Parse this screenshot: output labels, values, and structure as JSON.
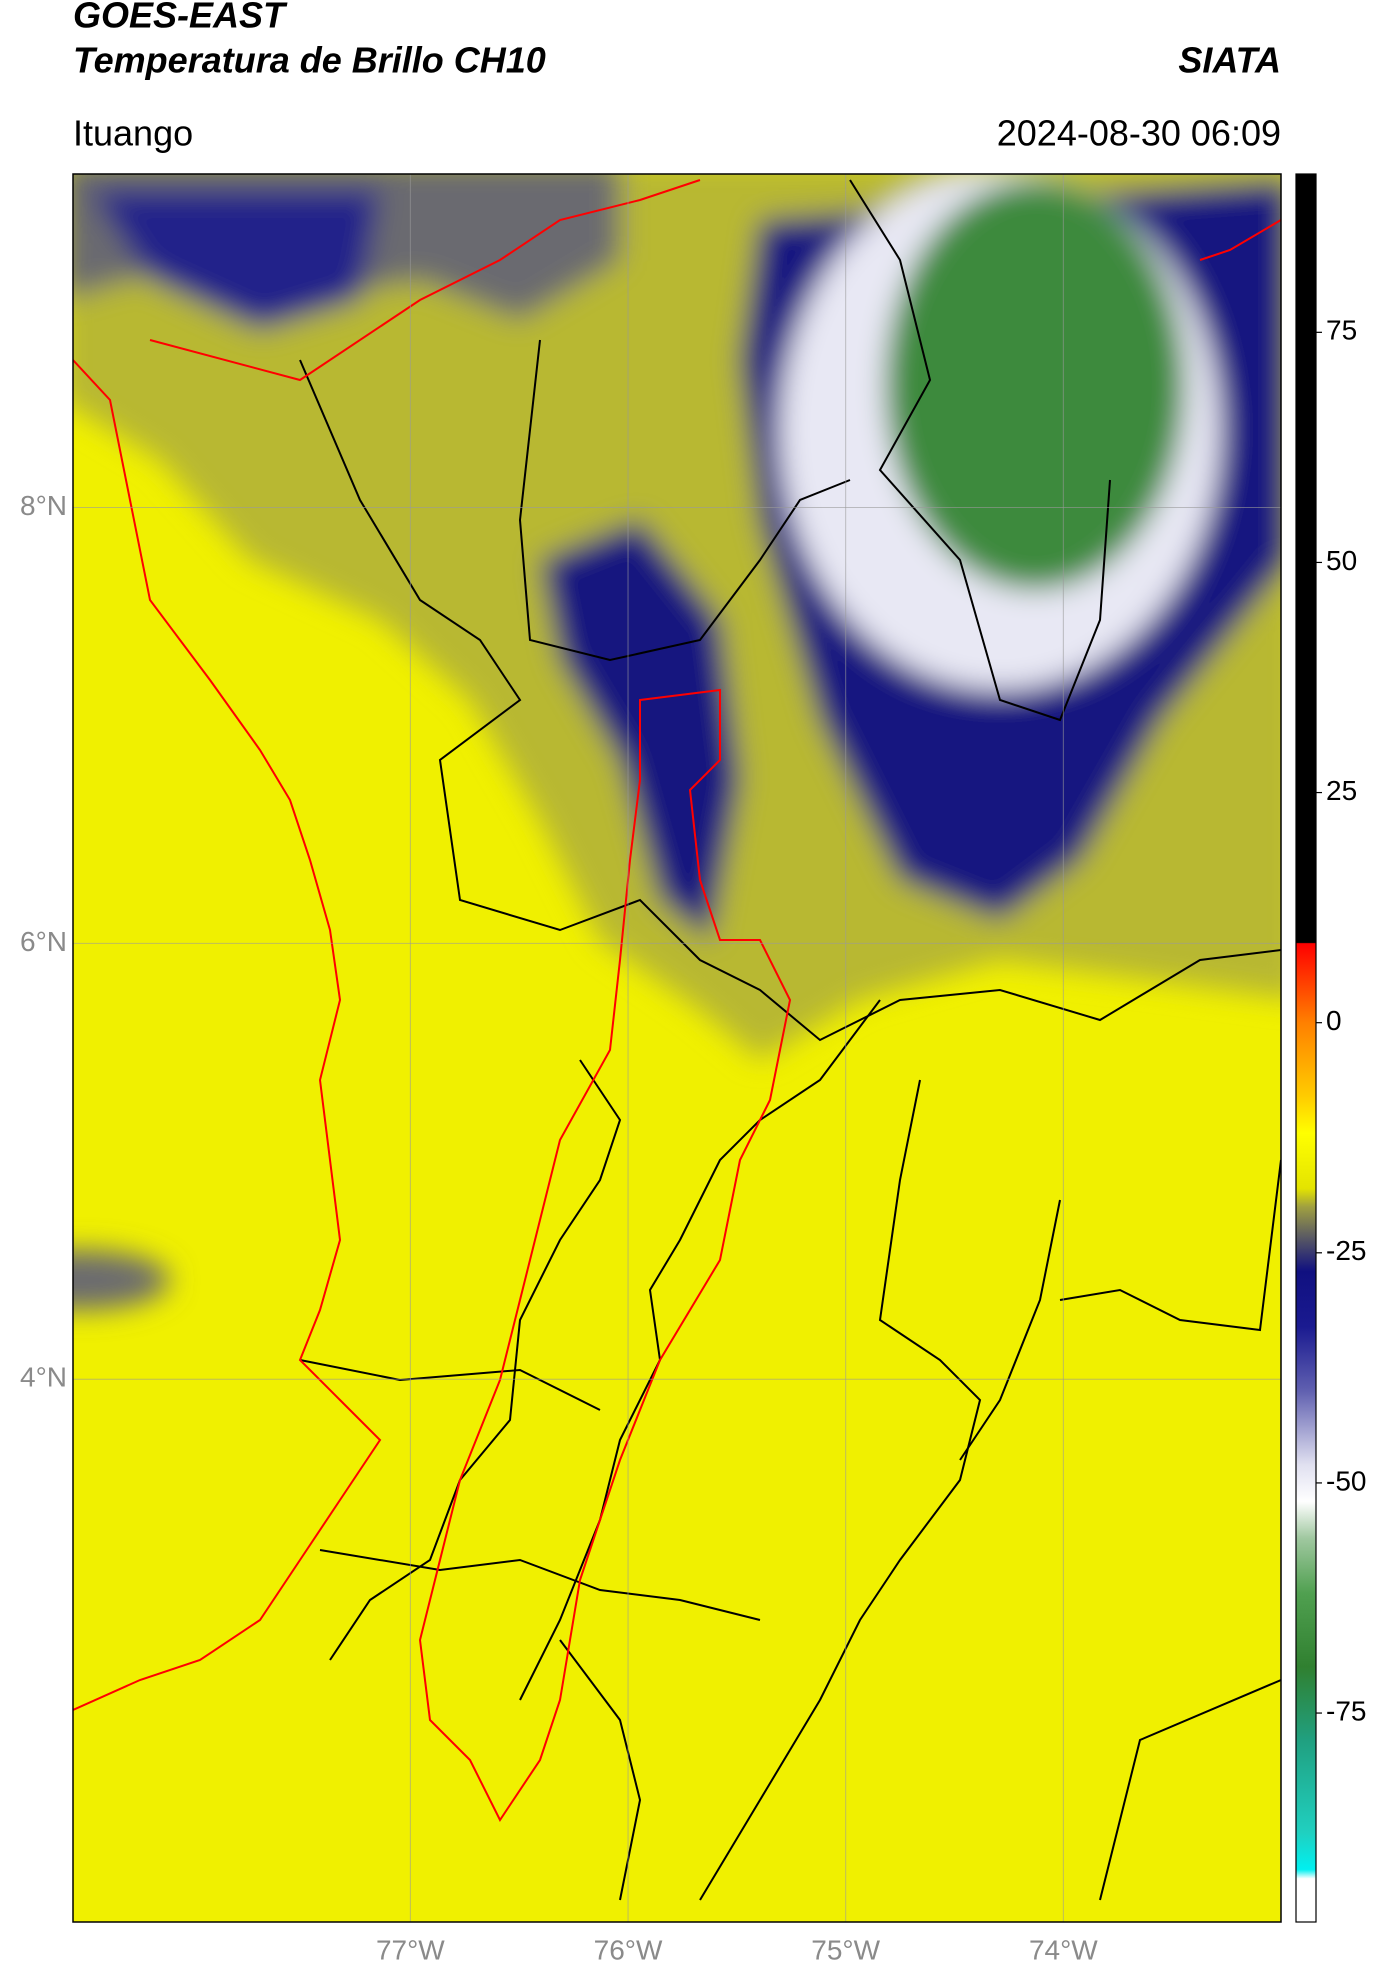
{
  "chart_data": {
    "type": "map",
    "title": "GOES-EAST",
    "subtitle": "Temperatura de Brillo CH10",
    "source": "SIATA",
    "location": "Ituango",
    "datetime": "2024-08-30 06:09",
    "xlim": [
      -78.55,
      -73.0
    ],
    "ylim": [
      1.51,
      9.53
    ],
    "xticks": [
      {
        "value": -77,
        "label": "77°W"
      },
      {
        "value": -76,
        "label": "76°W"
      },
      {
        "value": -75,
        "label": "75°W"
      },
      {
        "value": -74,
        "label": "74°W"
      }
    ],
    "yticks": [
      {
        "value": 8,
        "label": "8°N"
      },
      {
        "value": 6,
        "label": "6°N"
      },
      {
        "value": 4,
        "label": "4°N"
      }
    ],
    "grid": true,
    "colorbar": {
      "lim": [
        -97.7,
        92.2
      ],
      "ticks": [
        75,
        50,
        25,
        0,
        -25,
        -50,
        -75
      ],
      "colormap": [
        {
          "value": 92.2,
          "color": "#000000"
        },
        {
          "value": 8.7,
          "color": "#000000"
        },
        {
          "value": 8.6,
          "color": "#ff0000"
        },
        {
          "value": 0,
          "color": "#ff8000"
        },
        {
          "value": -8,
          "color": "#ffcc00"
        },
        {
          "value": -12,
          "color": "#ffff00"
        },
        {
          "value": -18,
          "color": "#e4e400"
        },
        {
          "value": -20,
          "color": "#a0a040"
        },
        {
          "value": -23,
          "color": "#606060"
        },
        {
          "value": -27,
          "color": "#101080"
        },
        {
          "value": -33,
          "color": "#1a1a90"
        },
        {
          "value": -40,
          "color": "#6060b0"
        },
        {
          "value": -48,
          "color": "#e0e0f0"
        },
        {
          "value": -52,
          "color": "#ffffff"
        },
        {
          "value": -56,
          "color": "#a0c8a0"
        },
        {
          "value": -62,
          "color": "#50a050"
        },
        {
          "value": -70,
          "color": "#308030"
        },
        {
          "value": -78,
          "color": "#20a080"
        },
        {
          "value": -88,
          "color": "#20d0c0"
        },
        {
          "value": -92,
          "color": "#00f0f0"
        },
        {
          "value": -93,
          "color": "#ffffff"
        },
        {
          "value": -97.7,
          "color": "#ffffff"
        }
      ]
    }
  }
}
